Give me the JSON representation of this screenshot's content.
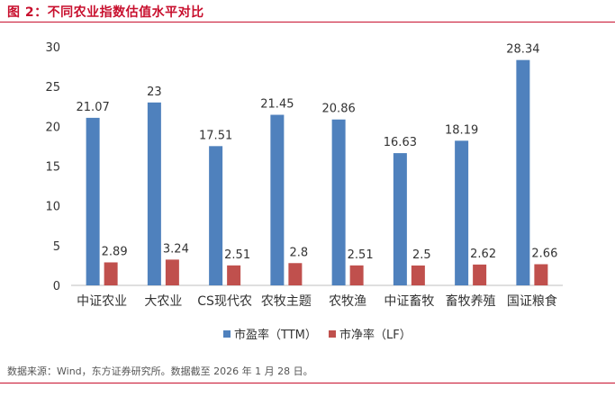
{
  "title": "图 2：不同农业指数估值水平对比",
  "source": "数据来源：Wind，东方证券研究所。数据截至 2026 年 1 月 28 日。",
  "colors": {
    "accent": "#c8102e",
    "pe": "#4f81bd",
    "pb": "#c0504d"
  },
  "chart_data": {
    "type": "bar",
    "categories": [
      "中证农业",
      "大农业",
      "CS现代农",
      "农牧主题",
      "农牧渔",
      "中证畜牧",
      "畜牧养殖",
      "国证粮食"
    ],
    "series": [
      {
        "name": "市盈率（TTM）",
        "values": [
          21.07,
          23,
          17.51,
          21.45,
          20.86,
          16.63,
          18.19,
          28.34
        ]
      },
      {
        "name": "市净率（LF）",
        "values": [
          2.89,
          3.24,
          2.51,
          2.8,
          2.51,
          2.5,
          2.62,
          2.66
        ]
      }
    ],
    "y_ticks": [
      "0",
      "5",
      "10",
      "15",
      "20",
      "25",
      "30"
    ],
    "ylim": [
      0,
      30
    ],
    "grid": false,
    "legend": "bottom"
  }
}
